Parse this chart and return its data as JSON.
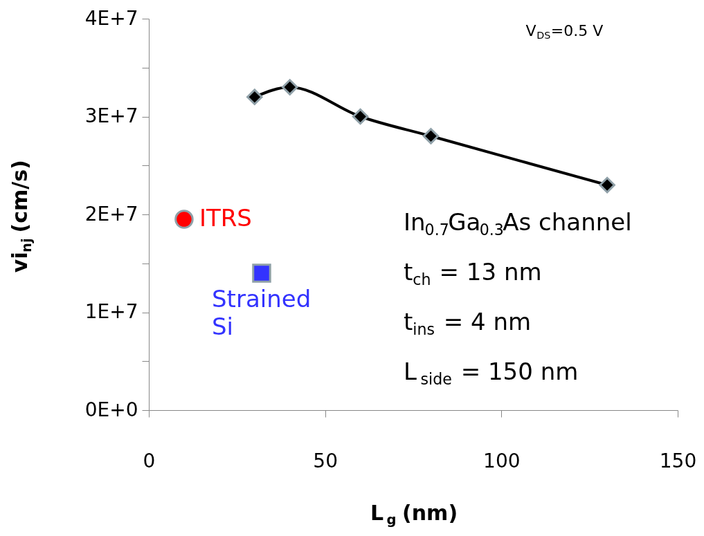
{
  "chart_data": {
    "type": "line",
    "xlabel": "L$_{g}$ (nm)",
    "ylabel": "vi$_{nj}$ (cm/s)",
    "xlim": [
      0,
      150
    ],
    "xticks": [
      0,
      50,
      100,
      150
    ],
    "ylim": [
      0,
      40000000
    ],
    "yticks": [
      {
        "value": 0,
        "label": "0E+0"
      },
      {
        "value": 5000000,
        "label": null
      },
      {
        "value": 10000000,
        "label": "1E+7"
      },
      {
        "value": 15000000,
        "label": null
      },
      {
        "value": 20000000,
        "label": "2E+7"
      },
      {
        "value": 25000000,
        "label": null
      },
      {
        "value": 30000000,
        "label": "3E+7"
      },
      {
        "value": 35000000,
        "label": null
      },
      {
        "value": 40000000,
        "label": "4E+7"
      }
    ],
    "grid": false,
    "series": [
      {
        "color": "#000000",
        "marker": "diamond",
        "line_style": "solid",
        "x": [
          30,
          40,
          60,
          80,
          130
        ],
        "values": [
          32000000,
          33000000,
          30000000,
          28000000,
          23000000
        ]
      },
      {
        "type": "scatter",
        "name": "ITRS",
        "color": "#ff0000",
        "marker": "circle",
        "x": [
          10
        ],
        "values": [
          19500000
        ]
      },
      {
        "type": "scatter",
        "name": "Strained Si",
        "color": "#3333ff",
        "marker": "square",
        "x": [
          32
        ],
        "values": [
          14000000
        ]
      }
    ],
    "annotations": [
      "V$_{DS}$=0.5 V",
      "In$_{0.7}$Ga$_{0.3}$As channel",
      "t$_{ch}$ = 13 nm",
      "t$_{ins}$ = 4 nm",
      "L$_{side}$ = 150 nm"
    ]
  }
}
